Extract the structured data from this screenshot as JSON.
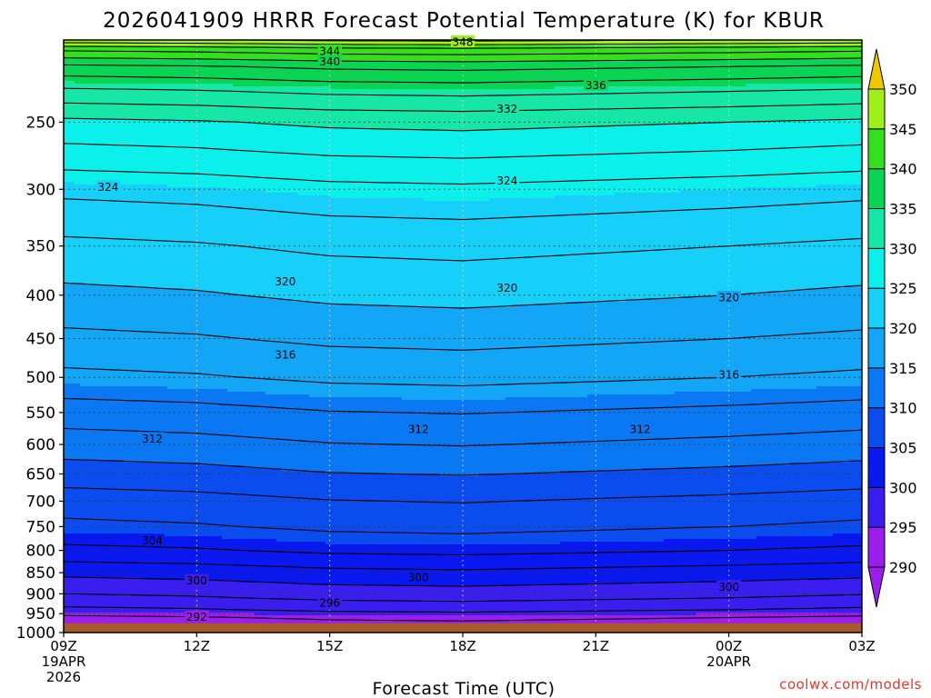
{
  "chart_data": {
    "type": "heatmap",
    "subtype": "filled-contour",
    "title": "2026041909 HRRR Forecast Potential Temperature (K) for KBUR",
    "xlabel": "Forecast Time (UTC)",
    "ylabel": "",
    "credit": "coolwx.com/models",
    "y_scale": "log-pressure",
    "y_axis_units": "hPa",
    "ylim": [
      1000,
      200
    ],
    "y_ticks": [
      1000,
      950,
      900,
      850,
      800,
      750,
      700,
      650,
      600,
      550,
      500,
      450,
      400,
      350,
      300,
      250
    ],
    "x_hours": [
      0,
      3,
      6,
      9,
      12,
      15,
      18
    ],
    "x_tick_labels": [
      [
        "09Z",
        "19APR",
        "2026"
      ],
      [
        "12Z"
      ],
      [
        "15Z"
      ],
      [
        "18Z"
      ],
      [
        "21Z"
      ],
      [
        "00Z",
        "20APR"
      ],
      [
        "03Z"
      ]
    ],
    "colorbar": {
      "levels": [
        290,
        295,
        300,
        305,
        310,
        315,
        320,
        325,
        330,
        335,
        340,
        345,
        350
      ],
      "colors": [
        "#9b1eec",
        "#3a1ef0",
        "#0a18f0",
        "#0a4cee",
        "#0a78f2",
        "#14a6f6",
        "#16d0fa",
        "#0cf0ec",
        "#16e6a6",
        "#0ad454",
        "#34e01e",
        "#9ef01a",
        "#f5f500"
      ],
      "extend": "both",
      "under_color": "#9b1eec",
      "over_color": "#f0c800"
    },
    "ground_color": "#a85a2a",
    "surface_pressure_hpa": 975,
    "theta_profile": {
      "pressure_hpa": [
        975,
        960,
        940,
        910,
        880,
        850,
        800,
        750,
        700,
        650,
        600,
        550,
        500,
        450,
        400,
        350,
        300,
        270,
        250,
        230,
        215,
        205,
        200
      ],
      "theta_k": [
        293,
        294,
        296,
        298,
        299.5,
        301,
        304,
        306,
        307.5,
        309.5,
        311.5,
        313.5,
        316,
        318,
        320,
        322,
        325,
        328,
        330,
        334,
        338,
        343,
        348
      ]
    },
    "time_anomaly_k": [
      -0.5,
      -0.2,
      0.4,
      0.6,
      0.3,
      0.0,
      -0.4
    ],
    "contour_labels": [
      {
        "value": 348,
        "hour": 9.0,
        "pressure": 201
      },
      {
        "value": 344,
        "hour": 6.0,
        "pressure": 206
      },
      {
        "value": 340,
        "hour": 6.0,
        "pressure": 212
      },
      {
        "value": 336,
        "hour": 12.0,
        "pressure": 226
      },
      {
        "value": 332,
        "hour": 10.0,
        "pressure": 241
      },
      {
        "value": 324,
        "hour": 1.0,
        "pressure": 298
      },
      {
        "value": 324,
        "hour": 10.0,
        "pressure": 293
      },
      {
        "value": 320,
        "hour": 5.0,
        "pressure": 385
      },
      {
        "value": 320,
        "hour": 10.0,
        "pressure": 392
      },
      {
        "value": 320,
        "hour": 15.0,
        "pressure": 402
      },
      {
        "value": 316,
        "hour": 5.0,
        "pressure": 470
      },
      {
        "value": 316,
        "hour": 15.0,
        "pressure": 496
      },
      {
        "value": 312,
        "hour": 2.0,
        "pressure": 590
      },
      {
        "value": 312,
        "hour": 8.0,
        "pressure": 575
      },
      {
        "value": 312,
        "hour": 13.0,
        "pressure": 575
      },
      {
        "value": 304,
        "hour": 2.0,
        "pressure": 778
      },
      {
        "value": 300,
        "hour": 3.0,
        "pressure": 868
      },
      {
        "value": 300,
        "hour": 8.0,
        "pressure": 860
      },
      {
        "value": 300,
        "hour": 15.0,
        "pressure": 883
      },
      {
        "value": 296,
        "hour": 6.0,
        "pressure": 922
      },
      {
        "value": 292,
        "hour": 3.0,
        "pressure": 958
      }
    ]
  }
}
